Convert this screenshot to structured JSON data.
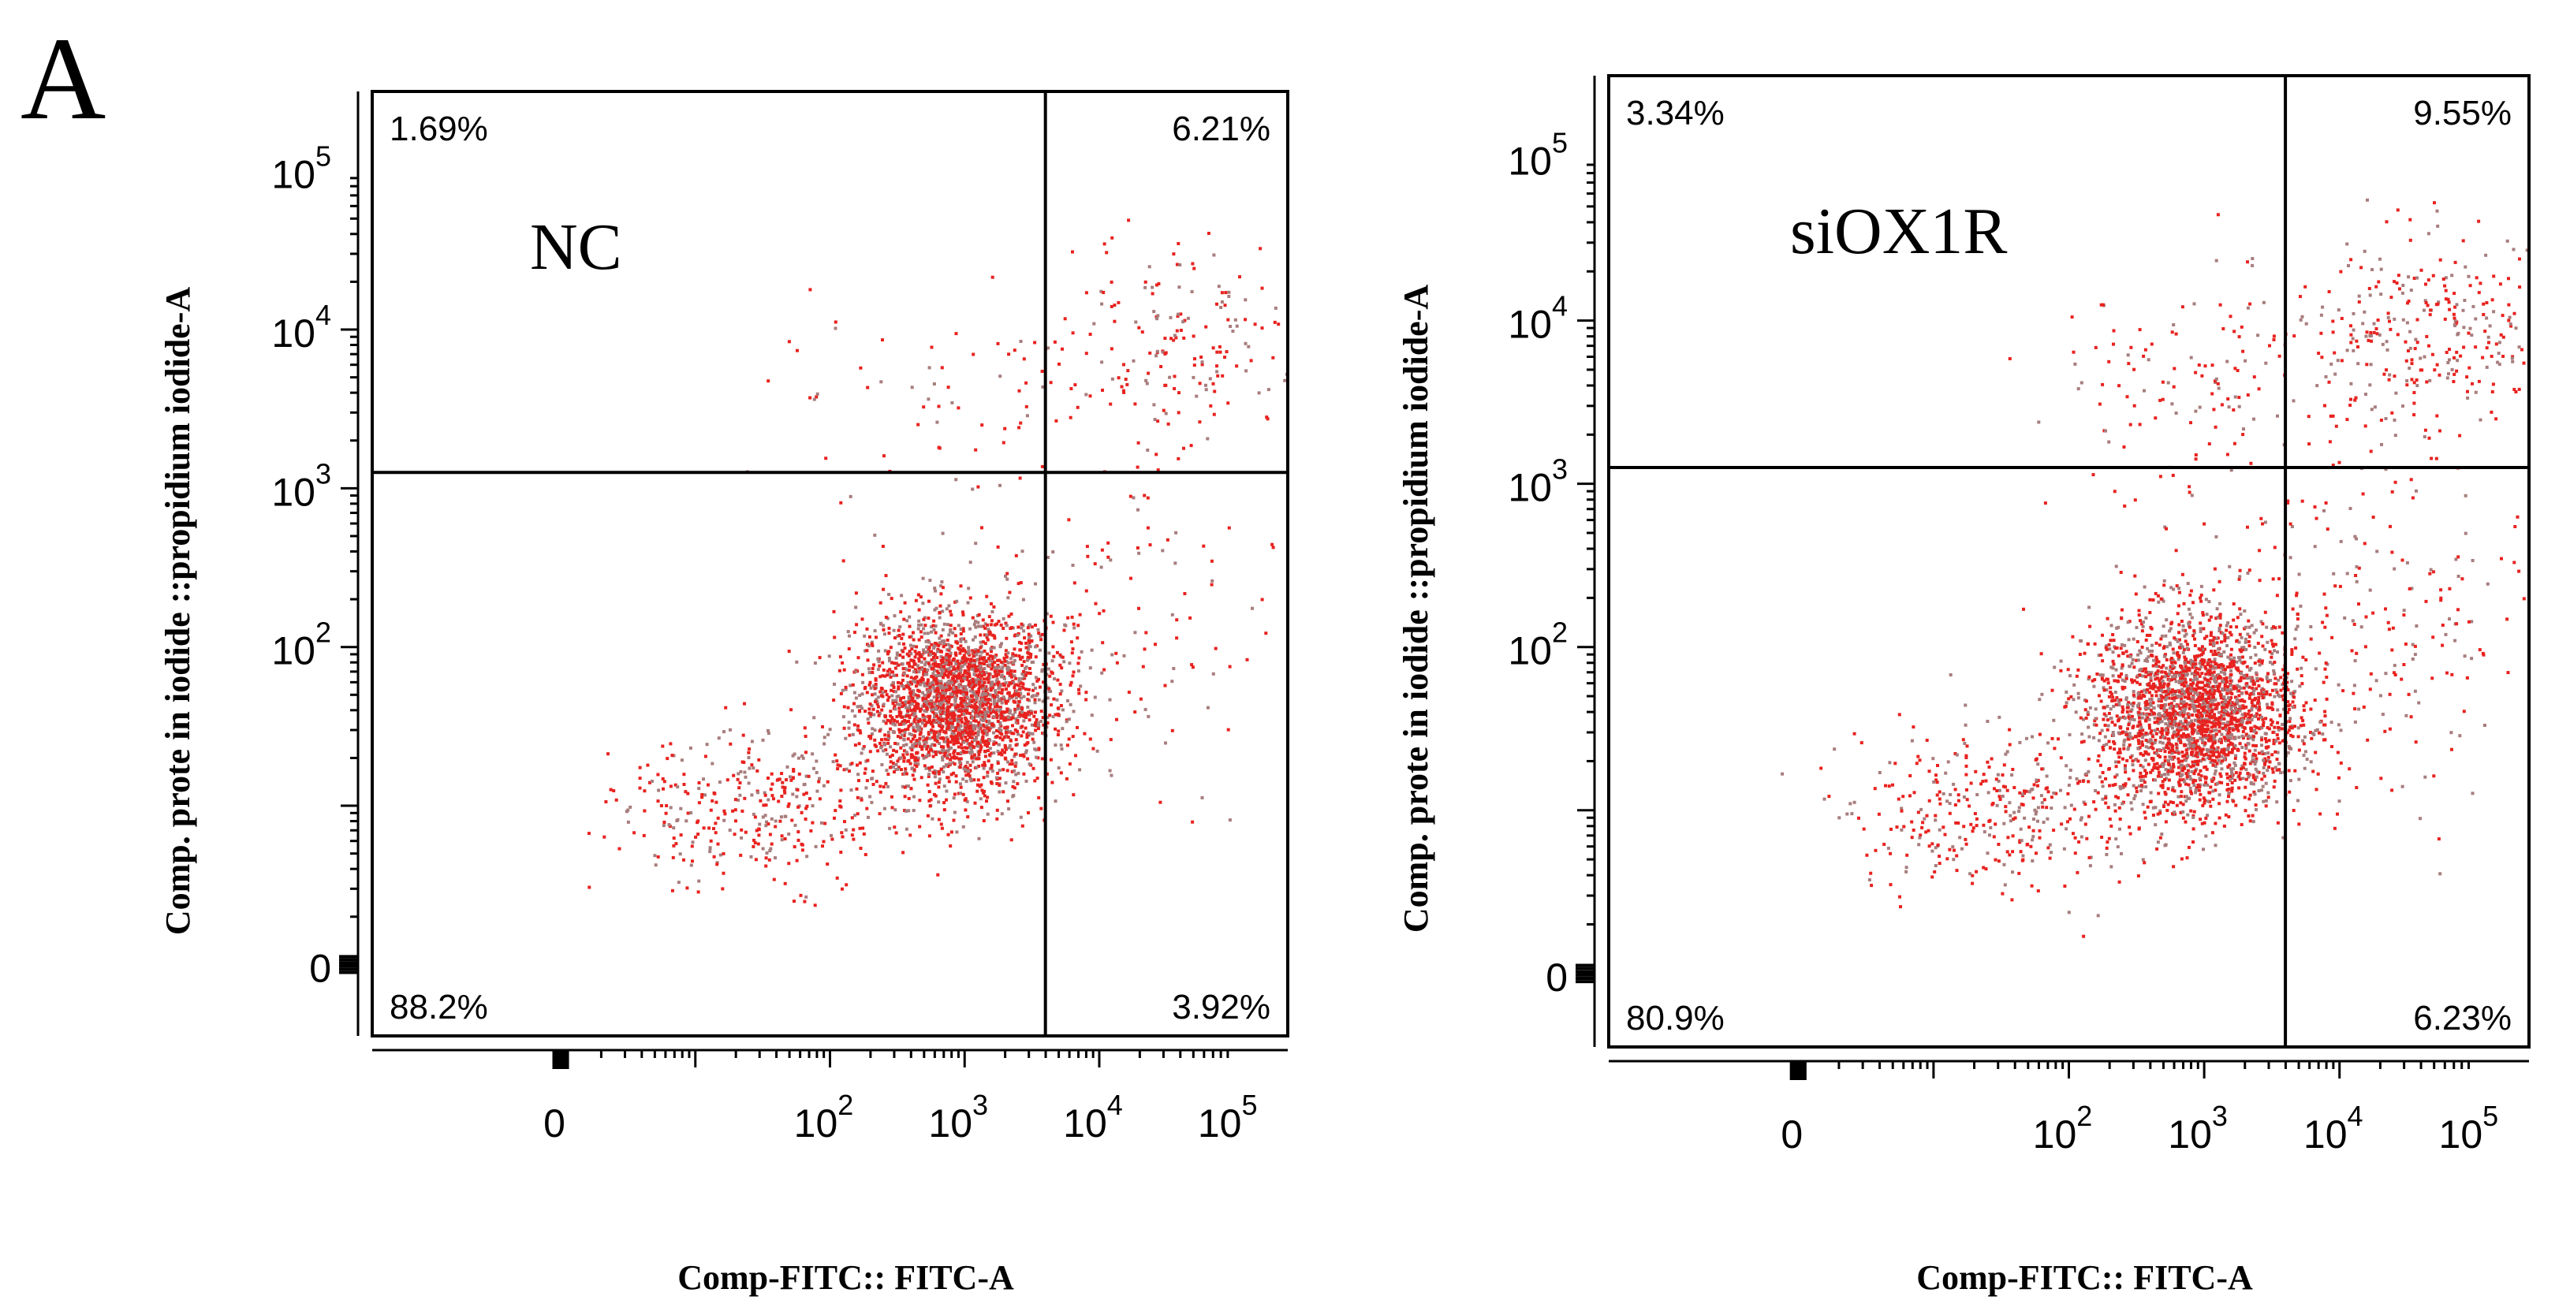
{
  "figure": {
    "panel_label": "A"
  },
  "chart_data": [
    {
      "type": "scatter",
      "name": "NC",
      "sample_label": "NC",
      "xlabel": "Comp-FITC:: FITC-A",
      "ylabel": "Comp. prote in iodide ::propidium iodide-A",
      "x_ticks": [
        {
          "value": 0,
          "label": "0",
          "exp": ""
        },
        {
          "value": 2,
          "label": "10",
          "exp": "2"
        },
        {
          "value": 3,
          "label": "10",
          "exp": "3"
        },
        {
          "value": 4,
          "label": "10",
          "exp": "4"
        },
        {
          "value": 5,
          "label": "10",
          "exp": "5"
        }
      ],
      "y_ticks": [
        {
          "value": 0,
          "label": "0",
          "exp": ""
        },
        {
          "value": 2,
          "label": "10",
          "exp": "2"
        },
        {
          "value": 3,
          "label": "10",
          "exp": "3"
        },
        {
          "value": 4,
          "label": "10",
          "exp": "4"
        },
        {
          "value": 5,
          "label": "10",
          "exp": "5"
        }
      ],
      "xlim": [
        -1.4,
        5.4
      ],
      "ylim": [
        -0.45,
        5.5
      ],
      "gate": {
        "x": 3.6,
        "y": 3.1
      },
      "quadrants": {
        "upper_left": "1.69%",
        "upper_right": "6.21%",
        "lower_left": "88.2%",
        "lower_right": "3.92%"
      },
      "populations": [
        {
          "region": "lower_left",
          "count": 2700,
          "cx": 2.95,
          "cy": 1.65,
          "sx": 0.36,
          "sy": 0.28
        },
        {
          "region": "lower_left_tail",
          "count": 380,
          "cx": 1.5,
          "cy": 1.0,
          "sx": 0.55,
          "sy": 0.25
        },
        {
          "region": "lower_right",
          "count": 120,
          "cx": 4.1,
          "cy": 2.1,
          "sx": 0.55,
          "sy": 0.55
        },
        {
          "region": "upper_right",
          "count": 200,
          "cx": 4.5,
          "cy": 3.85,
          "sx": 0.5,
          "sy": 0.3
        },
        {
          "region": "upper_left",
          "count": 55,
          "cx": 2.6,
          "cy": 3.5,
          "sx": 0.6,
          "sy": 0.3
        }
      ],
      "colors": {
        "primary": "#e8221f",
        "secondary": "#a87d7d"
      }
    },
    {
      "type": "scatter",
      "name": "siOX1R",
      "sample_label": "siOX1R",
      "xlabel": "Comp-FITC:: FITC-A",
      "ylabel": "Comp. prote in iodide ::propidium iodide-A",
      "x_ticks": [
        {
          "value": 0,
          "label": "0",
          "exp": ""
        },
        {
          "value": 2,
          "label": "10",
          "exp": "2"
        },
        {
          "value": 3,
          "label": "10",
          "exp": "3"
        },
        {
          "value": 4,
          "label": "10",
          "exp": "4"
        },
        {
          "value": 5,
          "label": "10",
          "exp": "5"
        }
      ],
      "y_ticks": [
        {
          "value": 0,
          "label": "0",
          "exp": ""
        },
        {
          "value": 2,
          "label": "10",
          "exp": "2"
        },
        {
          "value": 3,
          "label": "10",
          "exp": "3"
        },
        {
          "value": 4,
          "label": "10",
          "exp": "4"
        },
        {
          "value": 5,
          "label": "10",
          "exp": "5"
        }
      ],
      "xlim": [
        -1.4,
        5.4
      ],
      "ylim": [
        -0.45,
        5.5
      ],
      "gate": {
        "x": 3.6,
        "y": 3.1
      },
      "quadrants": {
        "upper_left": "3.34%",
        "upper_right": "9.55%",
        "lower_left": "80.9%",
        "lower_right": "6.23%"
      },
      "populations": [
        {
          "region": "lower_left",
          "count": 2600,
          "cx": 2.95,
          "cy": 1.6,
          "sx": 0.38,
          "sy": 0.3
        },
        {
          "region": "lower_left_tail",
          "count": 380,
          "cx": 1.5,
          "cy": 1.0,
          "sx": 0.55,
          "sy": 0.25
        },
        {
          "region": "lower_right",
          "count": 210,
          "cx": 4.3,
          "cy": 2.2,
          "sx": 0.6,
          "sy": 0.6
        },
        {
          "region": "upper_right",
          "count": 330,
          "cx": 4.6,
          "cy": 3.9,
          "sx": 0.55,
          "sy": 0.3
        },
        {
          "region": "upper_left",
          "count": 120,
          "cx": 2.9,
          "cy": 3.5,
          "sx": 0.55,
          "sy": 0.35
        }
      ],
      "colors": {
        "primary": "#e8221f",
        "secondary": "#a87d7d"
      }
    }
  ]
}
